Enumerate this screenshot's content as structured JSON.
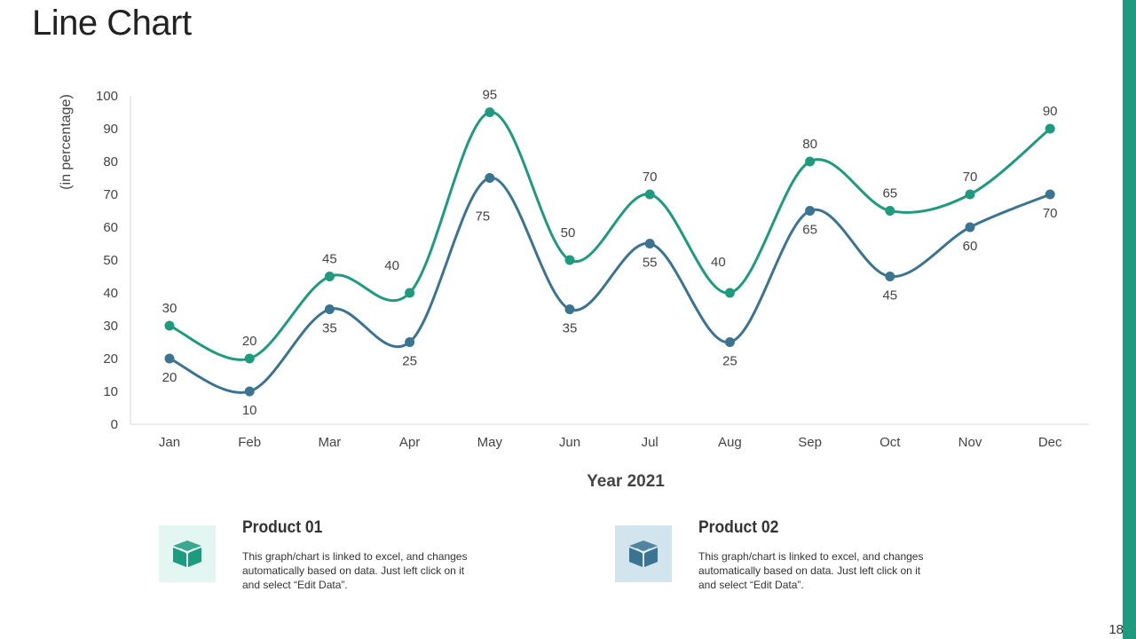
{
  "page": {
    "title": "Line Chart",
    "page_number": "18",
    "accent_color": "#1e9a7e"
  },
  "legend": [
    {
      "title": "Product 01",
      "description": "This graph/chart is linked to excel, and changes automatically based on data. Just left click on it and select “Edit Data”.",
      "icon": "box-icon",
      "color": "#1e9a7e",
      "bg_color": "#e3f6f1"
    },
    {
      "title": "Product 02",
      "description": "This graph/chart is linked to excel, and changes automatically based on data. Just left click on it and select “Edit Data”.",
      "icon": "box-icon",
      "color": "#3b7490",
      "bg_color": "#d2e5ee"
    }
  ],
  "chart_data": {
    "type": "line",
    "title": "",
    "xlabel": "Year 2021",
    "ylabel": "(in percentage)",
    "ylim": [
      0,
      100
    ],
    "yticks": [
      0,
      10,
      20,
      30,
      40,
      50,
      60,
      70,
      80,
      90,
      100
    ],
    "categories": [
      "Jan",
      "Feb",
      "Mar",
      "Apr",
      "May",
      "Jun",
      "Jul",
      "Aug",
      "Sep",
      "Oct",
      "Nov",
      "Dec"
    ],
    "series": [
      {
        "name": "Product 01",
        "color": "#1e9a7e",
        "values": [
          30,
          20,
          45,
          40,
          95,
          50,
          70,
          40,
          80,
          65,
          70,
          90
        ]
      },
      {
        "name": "Product 02",
        "color": "#3b7490",
        "values": [
          20,
          10,
          35,
          25,
          75,
          35,
          55,
          25,
          65,
          45,
          60,
          70
        ]
      }
    ],
    "grid": false,
    "smooth": true
  }
}
